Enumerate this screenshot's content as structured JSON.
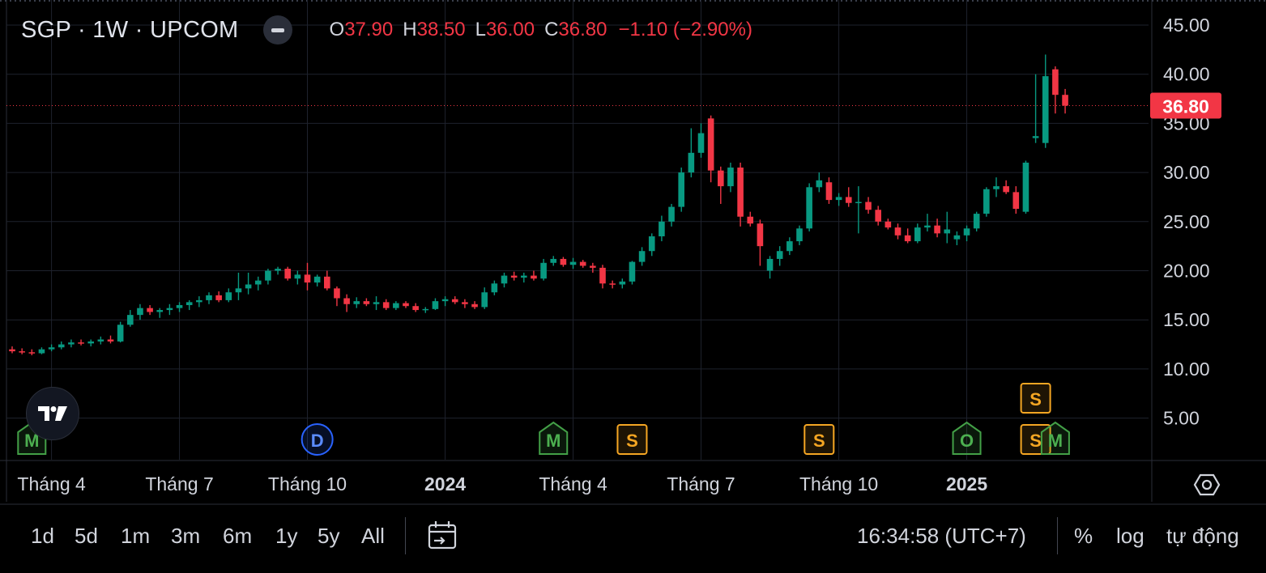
{
  "legend": {
    "symbol": "SGP · 1W · UPCOM",
    "open_key": "O",
    "open": "37.90",
    "high_key": "H",
    "high": "38.50",
    "low_key": "L",
    "low": "36.00",
    "close_key": "C",
    "close": "36.80",
    "change": "−1.10 (−2.90%)"
  },
  "price_label": "36.80",
  "colors": {
    "up": "#089981",
    "down": "#f23645",
    "background": "#000000",
    "grid": "#1e222d",
    "text": "#d1d4dc",
    "event_orange": "#f5a623",
    "event_green": "#43a047",
    "event_blue": "#2962ff"
  },
  "toolbar": {
    "timeframes": [
      "1d",
      "5d",
      "1m",
      "3m",
      "6m",
      "1y",
      "5y",
      "All"
    ],
    "clock": "16:34:58 (UTC+7)",
    "percent": "%",
    "log": "log",
    "auto": "tự động"
  },
  "icons": [
    "minus-icon",
    "tradingview-logo-icon",
    "calendar-goto-icon",
    "settings-hexagon-icon"
  ],
  "chart_data": {
    "type": "candlestick",
    "ticker": "SGP",
    "interval": "1W",
    "exchange": "UPCOM",
    "ylim": [
      2.0,
      47.0
    ],
    "yticks": [
      5,
      10,
      15,
      20,
      25,
      30,
      35,
      40,
      45
    ],
    "ytick_labels": [
      "5.00",
      "10.00",
      "15.00",
      "20.00",
      "25.00",
      "30.00",
      "35.00",
      "40.00",
      "45.00"
    ],
    "last_price": 36.8,
    "xticks": [
      {
        "label": "Tháng 4",
        "index": 4,
        "bold": false
      },
      {
        "label": "Tháng 7",
        "index": 17,
        "bold": false
      },
      {
        "label": "Tháng 10",
        "index": 30,
        "bold": false
      },
      {
        "label": "2024",
        "index": 44,
        "bold": true
      },
      {
        "label": "Tháng 4",
        "index": 57,
        "bold": false
      },
      {
        "label": "Tháng 7",
        "index": 70,
        "bold": false
      },
      {
        "label": "Tháng 10",
        "index": 84,
        "bold": false
      },
      {
        "label": "2025",
        "index": 97,
        "bold": true
      }
    ],
    "candles": [
      [
        12.0,
        12.3,
        11.6,
        11.8
      ],
      [
        11.8,
        12.1,
        11.5,
        11.7
      ],
      [
        11.7,
        12.0,
        11.4,
        11.6
      ],
      [
        11.6,
        12.2,
        11.5,
        12.0
      ],
      [
        12.0,
        12.5,
        11.8,
        12.2
      ],
      [
        12.2,
        12.8,
        12.0,
        12.5
      ],
      [
        12.5,
        13.0,
        12.2,
        12.7
      ],
      [
        12.7,
        13.0,
        12.4,
        12.6
      ],
      [
        12.6,
        13.0,
        12.3,
        12.8
      ],
      [
        12.8,
        13.3,
        12.5,
        13.0
      ],
      [
        13.0,
        13.4,
        12.6,
        12.8
      ],
      [
        12.8,
        14.8,
        12.7,
        14.5
      ],
      [
        14.5,
        16.0,
        14.3,
        15.5
      ],
      [
        15.5,
        16.6,
        15.0,
        16.2
      ],
      [
        16.2,
        16.5,
        15.5,
        15.8
      ],
      [
        15.8,
        16.2,
        15.2,
        16.0
      ],
      [
        16.0,
        16.6,
        15.5,
        16.2
      ],
      [
        16.2,
        16.8,
        15.8,
        16.5
      ],
      [
        16.5,
        17.0,
        16.0,
        16.8
      ],
      [
        16.8,
        17.4,
        16.3,
        17.0
      ],
      [
        17.0,
        17.8,
        16.6,
        17.5
      ],
      [
        17.5,
        17.9,
        16.8,
        17.0
      ],
      [
        17.0,
        18.2,
        16.8,
        17.8
      ],
      [
        17.8,
        19.8,
        17.0,
        18.2
      ],
      [
        18.2,
        19.8,
        17.6,
        18.6
      ],
      [
        18.6,
        19.4,
        18.0,
        19.0
      ],
      [
        19.0,
        20.2,
        18.6,
        20.0
      ],
      [
        20.0,
        20.4,
        19.6,
        20.2
      ],
      [
        20.2,
        20.4,
        19.0,
        19.2
      ],
      [
        19.2,
        20.0,
        18.6,
        19.6
      ],
      [
        19.6,
        20.8,
        18.0,
        18.8
      ],
      [
        18.8,
        19.6,
        18.4,
        19.4
      ],
      [
        19.4,
        20.0,
        18.0,
        18.2
      ],
      [
        18.2,
        18.4,
        16.4,
        17.2
      ],
      [
        17.2,
        17.6,
        15.8,
        16.6
      ],
      [
        16.6,
        17.3,
        16.2,
        16.9
      ],
      [
        16.9,
        17.2,
        16.4,
        16.6
      ],
      [
        16.6,
        17.4,
        16.0,
        16.8
      ],
      [
        16.8,
        17.1,
        16.0,
        16.2
      ],
      [
        16.2,
        16.9,
        16.0,
        16.7
      ],
      [
        16.7,
        16.9,
        16.2,
        16.4
      ],
      [
        16.4,
        16.7,
        15.8,
        16.0
      ],
      [
        16.0,
        16.3,
        15.7,
        16.1
      ],
      [
        16.1,
        17.2,
        16.0,
        16.9
      ],
      [
        16.9,
        17.4,
        16.4,
        17.1
      ],
      [
        17.1,
        17.4,
        16.6,
        16.8
      ],
      [
        16.8,
        17.1,
        16.2,
        16.6
      ],
      [
        16.6,
        16.9,
        16.1,
        16.3
      ],
      [
        16.3,
        18.3,
        16.1,
        17.8
      ],
      [
        17.8,
        19.0,
        17.5,
        18.7
      ],
      [
        18.7,
        19.8,
        18.3,
        19.5
      ],
      [
        19.5,
        19.9,
        19.0,
        19.3
      ],
      [
        19.3,
        19.8,
        18.8,
        19.5
      ],
      [
        19.5,
        20.0,
        19.0,
        19.2
      ],
      [
        19.2,
        21.2,
        19.0,
        20.8
      ],
      [
        20.8,
        21.5,
        20.5,
        21.2
      ],
      [
        21.2,
        21.4,
        20.4,
        20.6
      ],
      [
        20.6,
        21.3,
        20.2,
        20.9
      ],
      [
        20.9,
        21.1,
        20.3,
        20.5
      ],
      [
        20.5,
        20.8,
        19.8,
        20.3
      ],
      [
        20.3,
        20.6,
        18.2,
        18.7
      ],
      [
        18.7,
        19.0,
        18.2,
        18.6
      ],
      [
        18.6,
        19.2,
        18.2,
        18.9
      ],
      [
        18.9,
        21.0,
        18.6,
        20.9
      ],
      [
        20.9,
        22.4,
        20.5,
        22.0
      ],
      [
        22.0,
        23.8,
        21.5,
        23.5
      ],
      [
        23.5,
        25.6,
        23.0,
        25.0
      ],
      [
        25.0,
        26.8,
        24.5,
        26.5
      ],
      [
        26.5,
        30.5,
        26.0,
        30.0
      ],
      [
        30.0,
        34.5,
        29.5,
        32.0
      ],
      [
        32.0,
        35.0,
        31.5,
        34.0
      ],
      [
        35.5,
        35.8,
        29.0,
        30.2
      ],
      [
        30.2,
        30.6,
        26.8,
        28.6
      ],
      [
        28.6,
        31.0,
        28.0,
        30.5
      ],
      [
        30.5,
        31.0,
        24.5,
        25.5
      ],
      [
        25.5,
        26.0,
        24.5,
        24.8
      ],
      [
        24.8,
        25.2,
        20.5,
        22.5
      ],
      [
        20.0,
        21.5,
        19.2,
        21.2
      ],
      [
        21.2,
        22.5,
        20.5,
        22.0
      ],
      [
        22.0,
        23.4,
        21.6,
        23.0
      ],
      [
        23.0,
        24.6,
        22.6,
        24.3
      ],
      [
        24.3,
        28.9,
        24.0,
        28.5
      ],
      [
        28.5,
        30.0,
        28.0,
        29.2
      ],
      [
        29.0,
        29.5,
        26.8,
        27.2
      ],
      [
        27.2,
        27.9,
        26.6,
        27.5
      ],
      [
        27.5,
        28.5,
        26.5,
        26.9
      ],
      [
        26.9,
        28.6,
        23.8,
        27.0
      ],
      [
        27.0,
        27.5,
        25.8,
        26.2
      ],
      [
        26.2,
        26.6,
        24.6,
        25.0
      ],
      [
        25.0,
        25.3,
        24.2,
        24.4
      ],
      [
        24.4,
        24.8,
        23.2,
        23.6
      ],
      [
        23.6,
        24.3,
        22.8,
        23.0
      ],
      [
        23.0,
        24.8,
        22.8,
        24.4
      ],
      [
        24.4,
        25.8,
        24.0,
        24.6
      ],
      [
        24.6,
        25.3,
        23.4,
        23.8
      ],
      [
        23.8,
        26.0,
        22.8,
        24.2
      ],
      [
        23.2,
        24.0,
        22.6,
        23.6
      ],
      [
        23.6,
        24.6,
        23.0,
        24.3
      ],
      [
        24.3,
        26.0,
        24.0,
        25.8
      ],
      [
        25.8,
        28.5,
        25.5,
        28.3
      ],
      [
        28.3,
        29.5,
        27.5,
        28.6
      ],
      [
        28.6,
        29.2,
        27.8,
        28.0
      ],
      [
        28.0,
        28.6,
        25.8,
        26.3
      ],
      [
        26.0,
        31.2,
        25.8,
        31.0
      ],
      [
        33.5,
        40.0,
        33.0,
        33.7
      ],
      [
        33.0,
        42.0,
        32.5,
        39.8
      ],
      [
        40.5,
        40.8,
        36.0,
        37.9
      ],
      [
        37.9,
        38.5,
        36.0,
        36.8
      ]
    ],
    "events": [
      {
        "label": "M",
        "index": 2,
        "type": "dividend-green"
      },
      {
        "label": "D",
        "index": 31,
        "type": "dividend-blue"
      },
      {
        "label": "M",
        "index": 55,
        "type": "dividend-green"
      },
      {
        "label": "S",
        "index": 63,
        "type": "split-orange"
      },
      {
        "label": "S",
        "index": 82,
        "type": "split-orange"
      },
      {
        "label": "O",
        "index": 97,
        "type": "other-green"
      },
      {
        "label": "S",
        "index": 104,
        "type": "split-orange-upper"
      },
      {
        "label": "S",
        "index": 104,
        "type": "split-orange"
      },
      {
        "label": "M",
        "index": 106,
        "type": "dividend-green"
      }
    ]
  }
}
